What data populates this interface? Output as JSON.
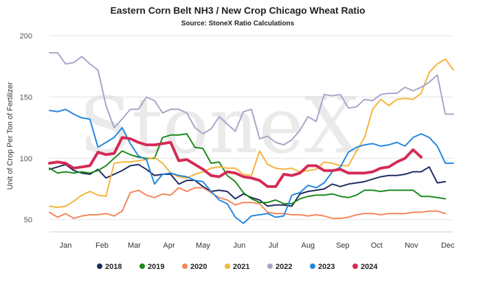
{
  "chart_data": {
    "type": "line",
    "title": "Eastern Corn Belt NH3 / New Crop Chicago Wheat Ratio",
    "subtitle": "Source: StoneX Ratio Calculations",
    "ylabel": "Unit of Crop Per Ton of Fertilizer",
    "watermark": "StoneX",
    "ylim": [
      40,
      200
    ],
    "yticks": [
      50,
      100,
      150,
      200
    ],
    "xlim": [
      0,
      50
    ],
    "xticks": [
      {
        "label": "Jan",
        "week": 2
      },
      {
        "label": "Feb",
        "week": 6.5
      },
      {
        "label": "Mar",
        "week": 10.5
      },
      {
        "label": "Apr",
        "week": 14.8
      },
      {
        "label": "May",
        "week": 19
      },
      {
        "label": "Jun",
        "week": 23.5
      },
      {
        "label": "Jul",
        "week": 27.7
      },
      {
        "label": "Aug",
        "week": 32
      },
      {
        "label": "Sep",
        "week": 36.3
      },
      {
        "label": "Oct",
        "week": 40.5
      },
      {
        "label": "Nov",
        "week": 44.8
      },
      {
        "label": "Dec",
        "week": 49.3
      }
    ],
    "legend_position": "bottom",
    "grid": true,
    "series": [
      {
        "name": "2018",
        "color": "#1c2a5e",
        "width": 2,
        "start": 0,
        "values": [
          91,
          93,
          95,
          90,
          88,
          87,
          91,
          84,
          87,
          90,
          94,
          95,
          91,
          86,
          87,
          87,
          79,
          82,
          82,
          77,
          73,
          74,
          73,
          67,
          71,
          68,
          66,
          61,
          62,
          62,
          61,
          71,
          73,
          74,
          75,
          79,
          77,
          79,
          80,
          81,
          83,
          85,
          86,
          86,
          87,
          89,
          89,
          93,
          80,
          81
        ]
      },
      {
        "name": "2019",
        "color": "#1a8a1a",
        "width": 2,
        "start": 0,
        "values": [
          92,
          88,
          89,
          88,
          89,
          88,
          90,
          94,
          100,
          106,
          103,
          101,
          100,
          100,
          117,
          119,
          119,
          120,
          109,
          108,
          96,
          97,
          86,
          81,
          72,
          67,
          64,
          64,
          66,
          63,
          63,
          67,
          69,
          70,
          70,
          71,
          69,
          68,
          70,
          74,
          74,
          73,
          74,
          74,
          74,
          74,
          69,
          69,
          68,
          67
        ]
      },
      {
        "name": "2020",
        "color": "#f5855a",
        "width": 2,
        "start": 0,
        "values": [
          56,
          52,
          55,
          51,
          53,
          54,
          54,
          55,
          53,
          57,
          72,
          74,
          70,
          68,
          71,
          70,
          76,
          73,
          76,
          76,
          72,
          68,
          66,
          62,
          64,
          64,
          63,
          56,
          55,
          55,
          54,
          54,
          53,
          54,
          53,
          51,
          51,
          52,
          54,
          55,
          55,
          54,
          55,
          55,
          55,
          56,
          56,
          57,
          57,
          55
        ]
      },
      {
        "name": "2021",
        "color": "#f5b43c",
        "width": 2,
        "start": 0,
        "values": [
          61,
          60,
          61,
          65,
          70,
          73,
          70,
          69,
          96,
          97,
          97,
          98,
          99,
          101,
          96,
          88,
          85,
          84,
          87,
          89,
          92,
          93,
          92,
          92,
          87,
          86,
          106,
          95,
          92,
          91,
          92,
          89,
          90,
          91,
          97,
          96,
          94,
          94,
          106,
          117,
          140,
          148,
          143,
          148,
          149,
          148,
          153,
          170,
          177,
          181,
          172
        ]
      },
      {
        "name": "2022",
        "color": "#a6a6c8",
        "width": 2,
        "start": 0,
        "values": [
          186,
          186,
          177,
          178,
          183,
          177,
          172,
          143,
          125,
          132,
          140,
          140,
          150,
          147,
          137,
          140,
          140,
          137,
          125,
          120,
          124,
          134,
          128,
          122,
          138,
          140,
          116,
          118,
          113,
          111,
          115,
          123,
          134,
          130,
          152,
          151,
          152,
          141,
          142,
          148,
          147,
          152,
          153,
          153,
          158,
          155,
          158,
          162,
          168,
          136,
          136
        ]
      },
      {
        "name": "2023",
        "color": "#2286e0",
        "width": 2,
        "start": 0,
        "values": [
          139,
          138,
          140,
          136,
          133,
          132,
          109,
          113,
          117,
          125,
          112,
          102,
          99,
          79,
          87,
          88,
          86,
          85,
          82,
          81,
          73,
          66,
          63,
          52,
          47,
          53,
          54,
          55,
          52,
          53,
          70,
          72,
          78,
          76,
          80,
          89,
          93,
          105,
          109,
          111,
          112,
          110,
          111,
          113,
          110,
          117,
          120,
          117,
          110,
          96,
          96
        ]
      },
      {
        "name": "2024",
        "color": "#d42a55",
        "width": 4,
        "start": 0,
        "values": [
          96,
          97,
          96,
          92,
          93,
          94,
          105,
          103,
          104,
          117,
          116,
          113,
          111,
          111,
          112,
          113,
          98,
          99,
          95,
          91,
          86,
          85,
          89,
          88,
          85,
          84,
          82,
          77,
          77,
          87,
          86,
          88,
          94,
          94,
          90,
          90,
          91,
          88,
          88,
          88,
          89,
          92,
          93,
          97,
          100,
          107,
          101
        ]
      }
    ]
  }
}
